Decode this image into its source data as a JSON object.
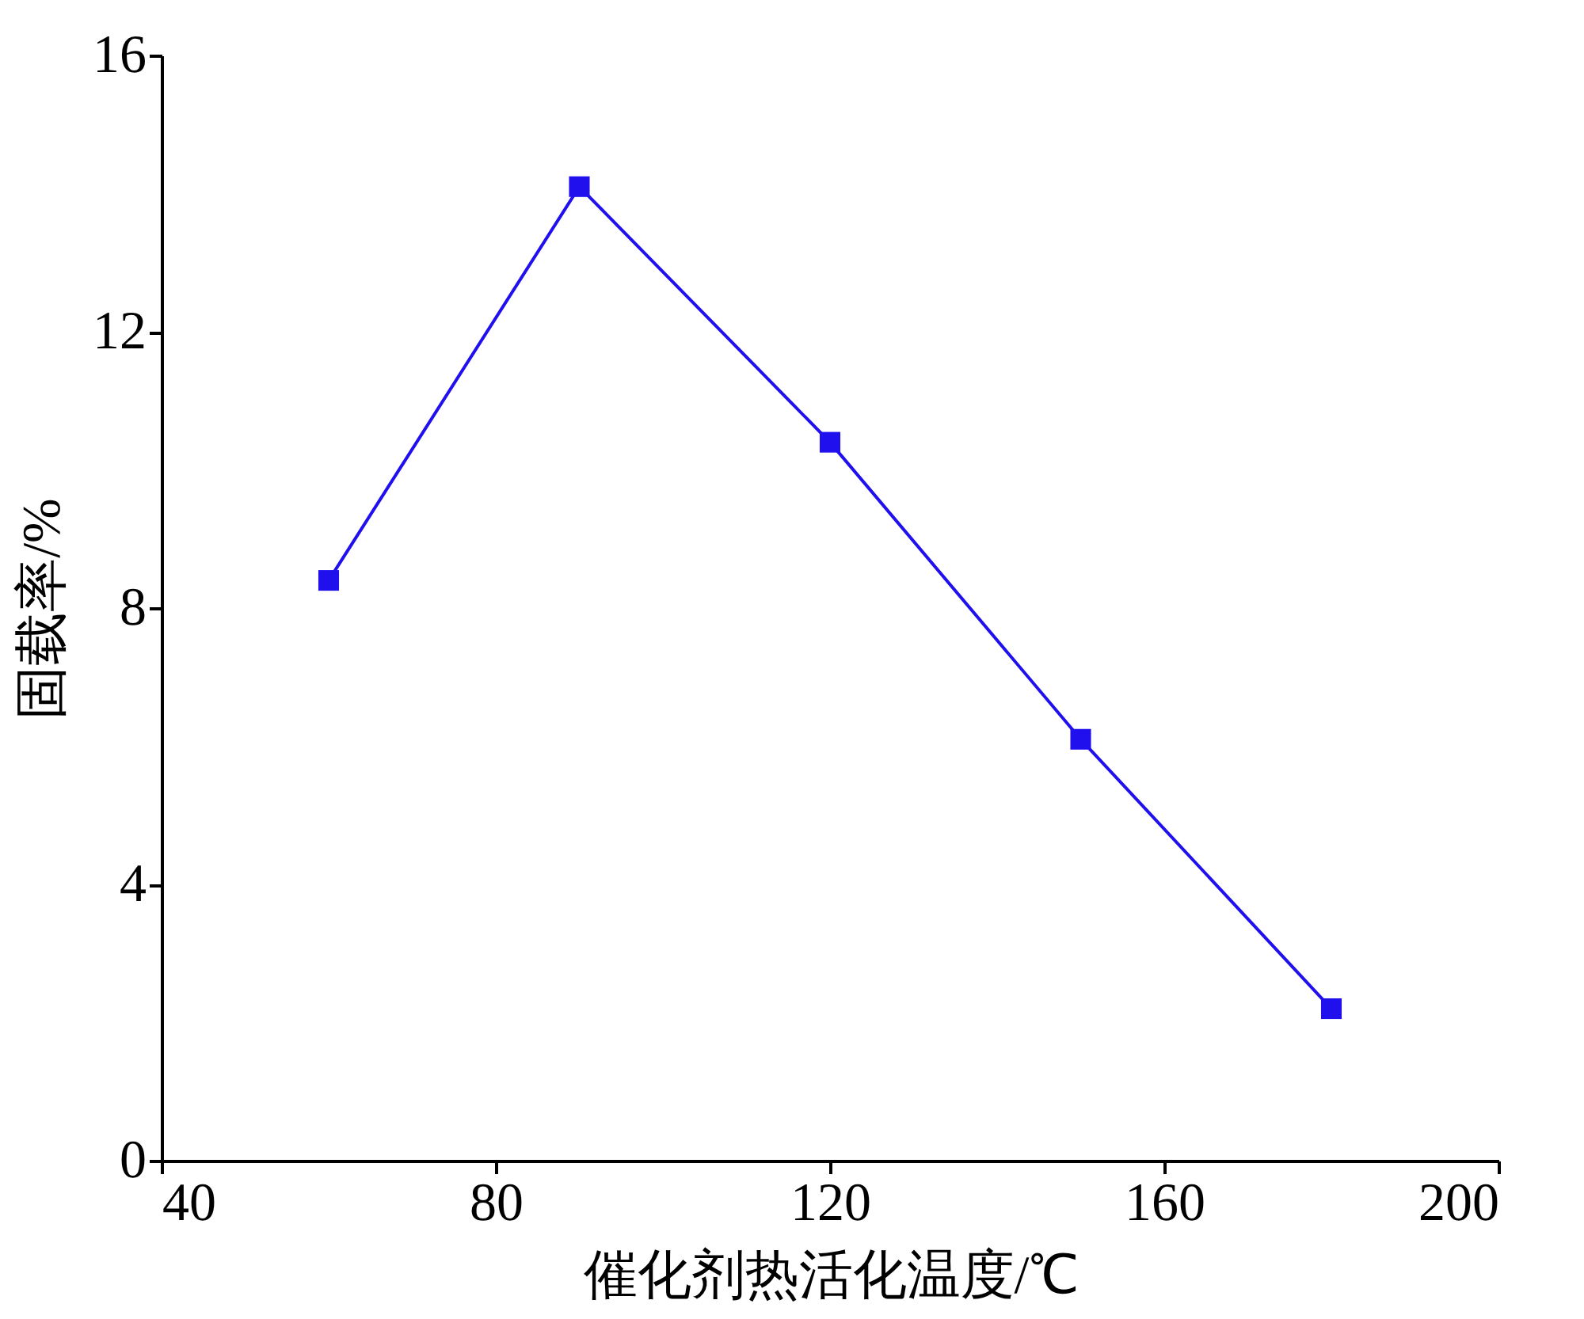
{
  "chart_data": {
    "type": "line",
    "xlabel": "催化剂热活化温度/℃",
    "ylabel": "固载率/%",
    "x": [
      60,
      90,
      120,
      150,
      180
    ],
    "series": [
      {
        "color": "#2010ee",
        "values": [
          8.4,
          14.1,
          10.4,
          6.1,
          2.2
        ]
      }
    ],
    "xlim": [
      40,
      200
    ],
    "xticks": [
      40,
      80,
      120,
      160,
      200
    ],
    "ylim": [
      0,
      16
    ],
    "yticks": [
      0,
      4,
      8,
      12,
      16
    ],
    "grid": false,
    "marker": "square",
    "line_style": "solid"
  }
}
